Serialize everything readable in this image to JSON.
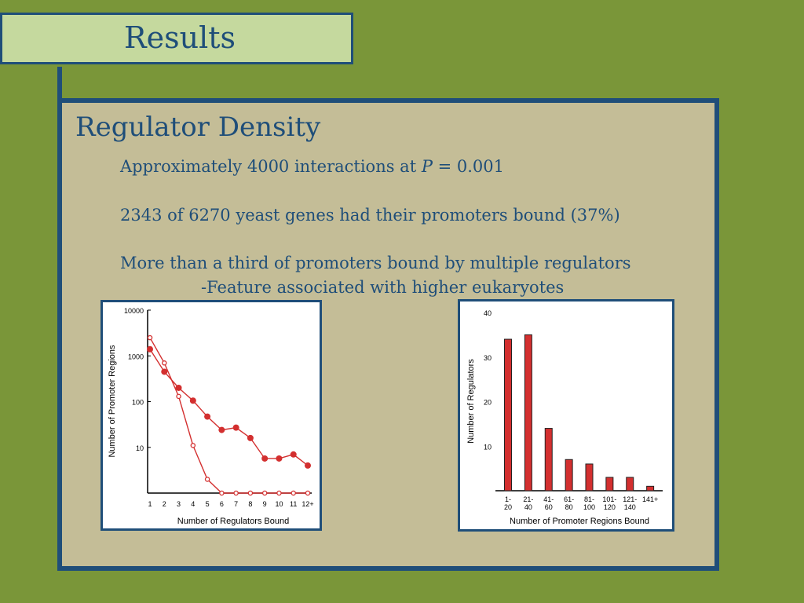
{
  "slide": {
    "title": "Results",
    "heading": "Regulator Density",
    "line1_pre": "Approximately 4000 interactions at ",
    "line1_p": "P",
    "line1_post": " = 0.001",
    "line2": "2343 of 6270 yeast genes had their promoters bound (37%)",
    "line3": "More than a third of promoters bound by multiple regulators",
    "line4": "-Feature associated with higher eukaryotes"
  },
  "colors": {
    "background": "#7a9639",
    "panel": "#c4bd97",
    "accent": "#1f4e79",
    "title_box": "#c5d99e",
    "series": "#d32f2f"
  },
  "chart_data": [
    {
      "type": "line",
      "xlabel": "Number of Regulators Bound",
      "ylabel": "Number of Promoter Regions",
      "yscale": "log",
      "ylim": [
        1,
        10000
      ],
      "ytick_labels": [
        "10",
        "100",
        "1000",
        "10000"
      ],
      "categories": [
        "1",
        "2",
        "3",
        "4",
        "5",
        "6",
        "7",
        "8",
        "9",
        "10",
        "11",
        "12+"
      ],
      "series": [
        {
          "marker": "filled",
          "values": [
            1400,
            450,
            200,
            105,
            47,
            24,
            27,
            16,
            5.7,
            5.7,
            7,
            4
          ]
        },
        {
          "marker": "open",
          "values": [
            2500,
            700,
            130,
            11,
            2,
            1,
            1,
            1,
            1,
            1,
            1,
            1
          ]
        }
      ]
    },
    {
      "type": "bar",
      "xlabel": "Number of Promoter Regions Bound",
      "ylabel": "Number of Regulators",
      "ylim": [
        0,
        40
      ],
      "ytick_labels": [
        "10",
        "20",
        "30",
        "40"
      ],
      "categories": [
        "1-\n20",
        "21-\n40",
        "41-\n60",
        "61-\n80",
        "81-\n100",
        "101-\n120",
        "121-\n140",
        "141+"
      ],
      "values": [
        34,
        35,
        14,
        7,
        6,
        3,
        3,
        1
      ]
    }
  ]
}
